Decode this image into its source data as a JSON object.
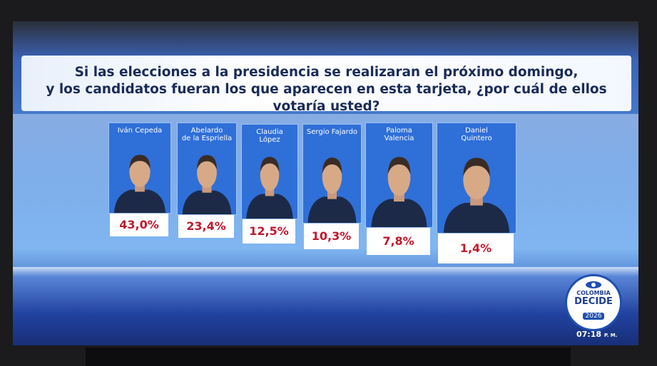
{
  "question": {
    "lines": [
      "Si las elecciones a la presidencia se realizaran el próximo domingo,",
      "y los candidatos fueran los que aparecen en esta tarjeta, ¿por cuál de ellos votaría usted?"
    ]
  },
  "candidates": [
    {
      "name": "Iván Cepeda",
      "result": "43,0%"
    },
    {
      "name": "Abelardo\nde la Espriella",
      "result": "23,4%"
    },
    {
      "name": "Claudia\nLópez",
      "result": "12,5%"
    },
    {
      "name": "Sergio Fajardo",
      "result": "10,3%"
    },
    {
      "name": "Paloma\nValencia",
      "result": "7,8%"
    },
    {
      "name": "Daniel\nQuintero",
      "result": "1,4%"
    }
  ],
  "logo": {
    "line1": "COLOMBIA",
    "line2": "DECIDE",
    "year": "2026"
  },
  "clock": {
    "time": "07:18",
    "period": "P. M."
  }
}
